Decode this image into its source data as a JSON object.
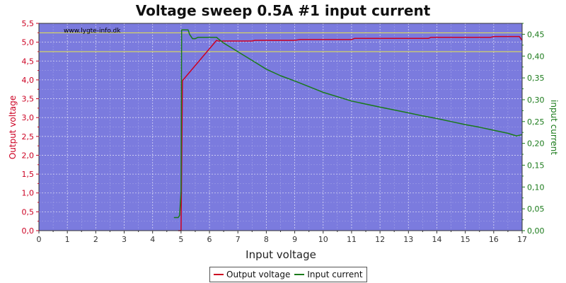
{
  "chart_data": {
    "type": "line",
    "title": "Voltage sweep 0.5A #1 input current",
    "xlabel": "Input voltage",
    "ylabel_left": "Output voltage",
    "ylabel_right": "input current",
    "watermark": "www.lygte-info.dk",
    "xlim": [
      0,
      17
    ],
    "ylim_left": [
      0,
      5.5
    ],
    "ylim_right": [
      0,
      0.475
    ],
    "x_ticks": [
      "0",
      "1",
      "2",
      "3",
      "4",
      "5",
      "6",
      "7",
      "8",
      "9",
      "10",
      "11",
      "12",
      "13",
      "14",
      "15",
      "16",
      "17"
    ],
    "y_ticks_left": [
      "0,0",
      "0,5",
      "1,0",
      "1,5",
      "2,0",
      "2,5",
      "3,0",
      "3,5",
      "4,0",
      "4,5",
      "5,0",
      "5,5"
    ],
    "y_ticks_right": [
      "0,00",
      "0,05",
      "0,10",
      "0,15",
      "0,20",
      "0,25",
      "0,30",
      "0,35",
      "0,40",
      "0,45"
    ],
    "grid": true,
    "legend_position": "bottom-center",
    "reference_lines_left": [
      5.25,
      4.75
    ],
    "series": [
      {
        "name": "Output voltage",
        "axis": "left",
        "color": "#cc0022",
        "x": [
          4.9,
          4.95,
          5.0,
          5.05,
          6.25,
          6.3,
          7.0,
          7.5,
          7.6,
          8.0,
          9.0,
          9.2,
          10.0,
          11.0,
          11.1,
          12.0,
          13.0,
          13.7,
          13.8,
          15.0,
          15.9,
          16.0,
          16.9,
          17.0
        ],
        "values": [
          0.0,
          0.0,
          0.0,
          3.98,
          5.05,
          5.03,
          5.03,
          5.03,
          5.05,
          5.05,
          5.05,
          5.07,
          5.07,
          5.07,
          5.1,
          5.1,
          5.1,
          5.1,
          5.13,
          5.13,
          5.13,
          5.15,
          5.15,
          5.05
        ]
      },
      {
        "name": "Input current",
        "axis": "right",
        "color": "#1a7a1a",
        "x": [
          4.75,
          4.9,
          4.95,
          5.0,
          5.02,
          5.1,
          5.25,
          5.3,
          5.4,
          5.5,
          5.6,
          6.0,
          6.25,
          6.3,
          6.5,
          7.0,
          7.5,
          8.0,
          8.5,
          9.0,
          9.5,
          10.0,
          11.0,
          12.0,
          13.0,
          13.5,
          14.0,
          14.5,
          15.0,
          15.5,
          16.0,
          16.5,
          16.8,
          17.0
        ],
        "values": [
          0.03,
          0.03,
          0.035,
          0.09,
          0.46,
          0.46,
          0.46,
          0.45,
          0.44,
          0.44,
          0.443,
          0.443,
          0.443,
          0.44,
          0.43,
          0.41,
          0.39,
          0.37,
          0.355,
          0.343,
          0.33,
          0.317,
          0.297,
          0.283,
          0.27,
          0.263,
          0.257,
          0.25,
          0.243,
          0.237,
          0.23,
          0.223,
          0.217,
          0.22
        ]
      }
    ]
  }
}
